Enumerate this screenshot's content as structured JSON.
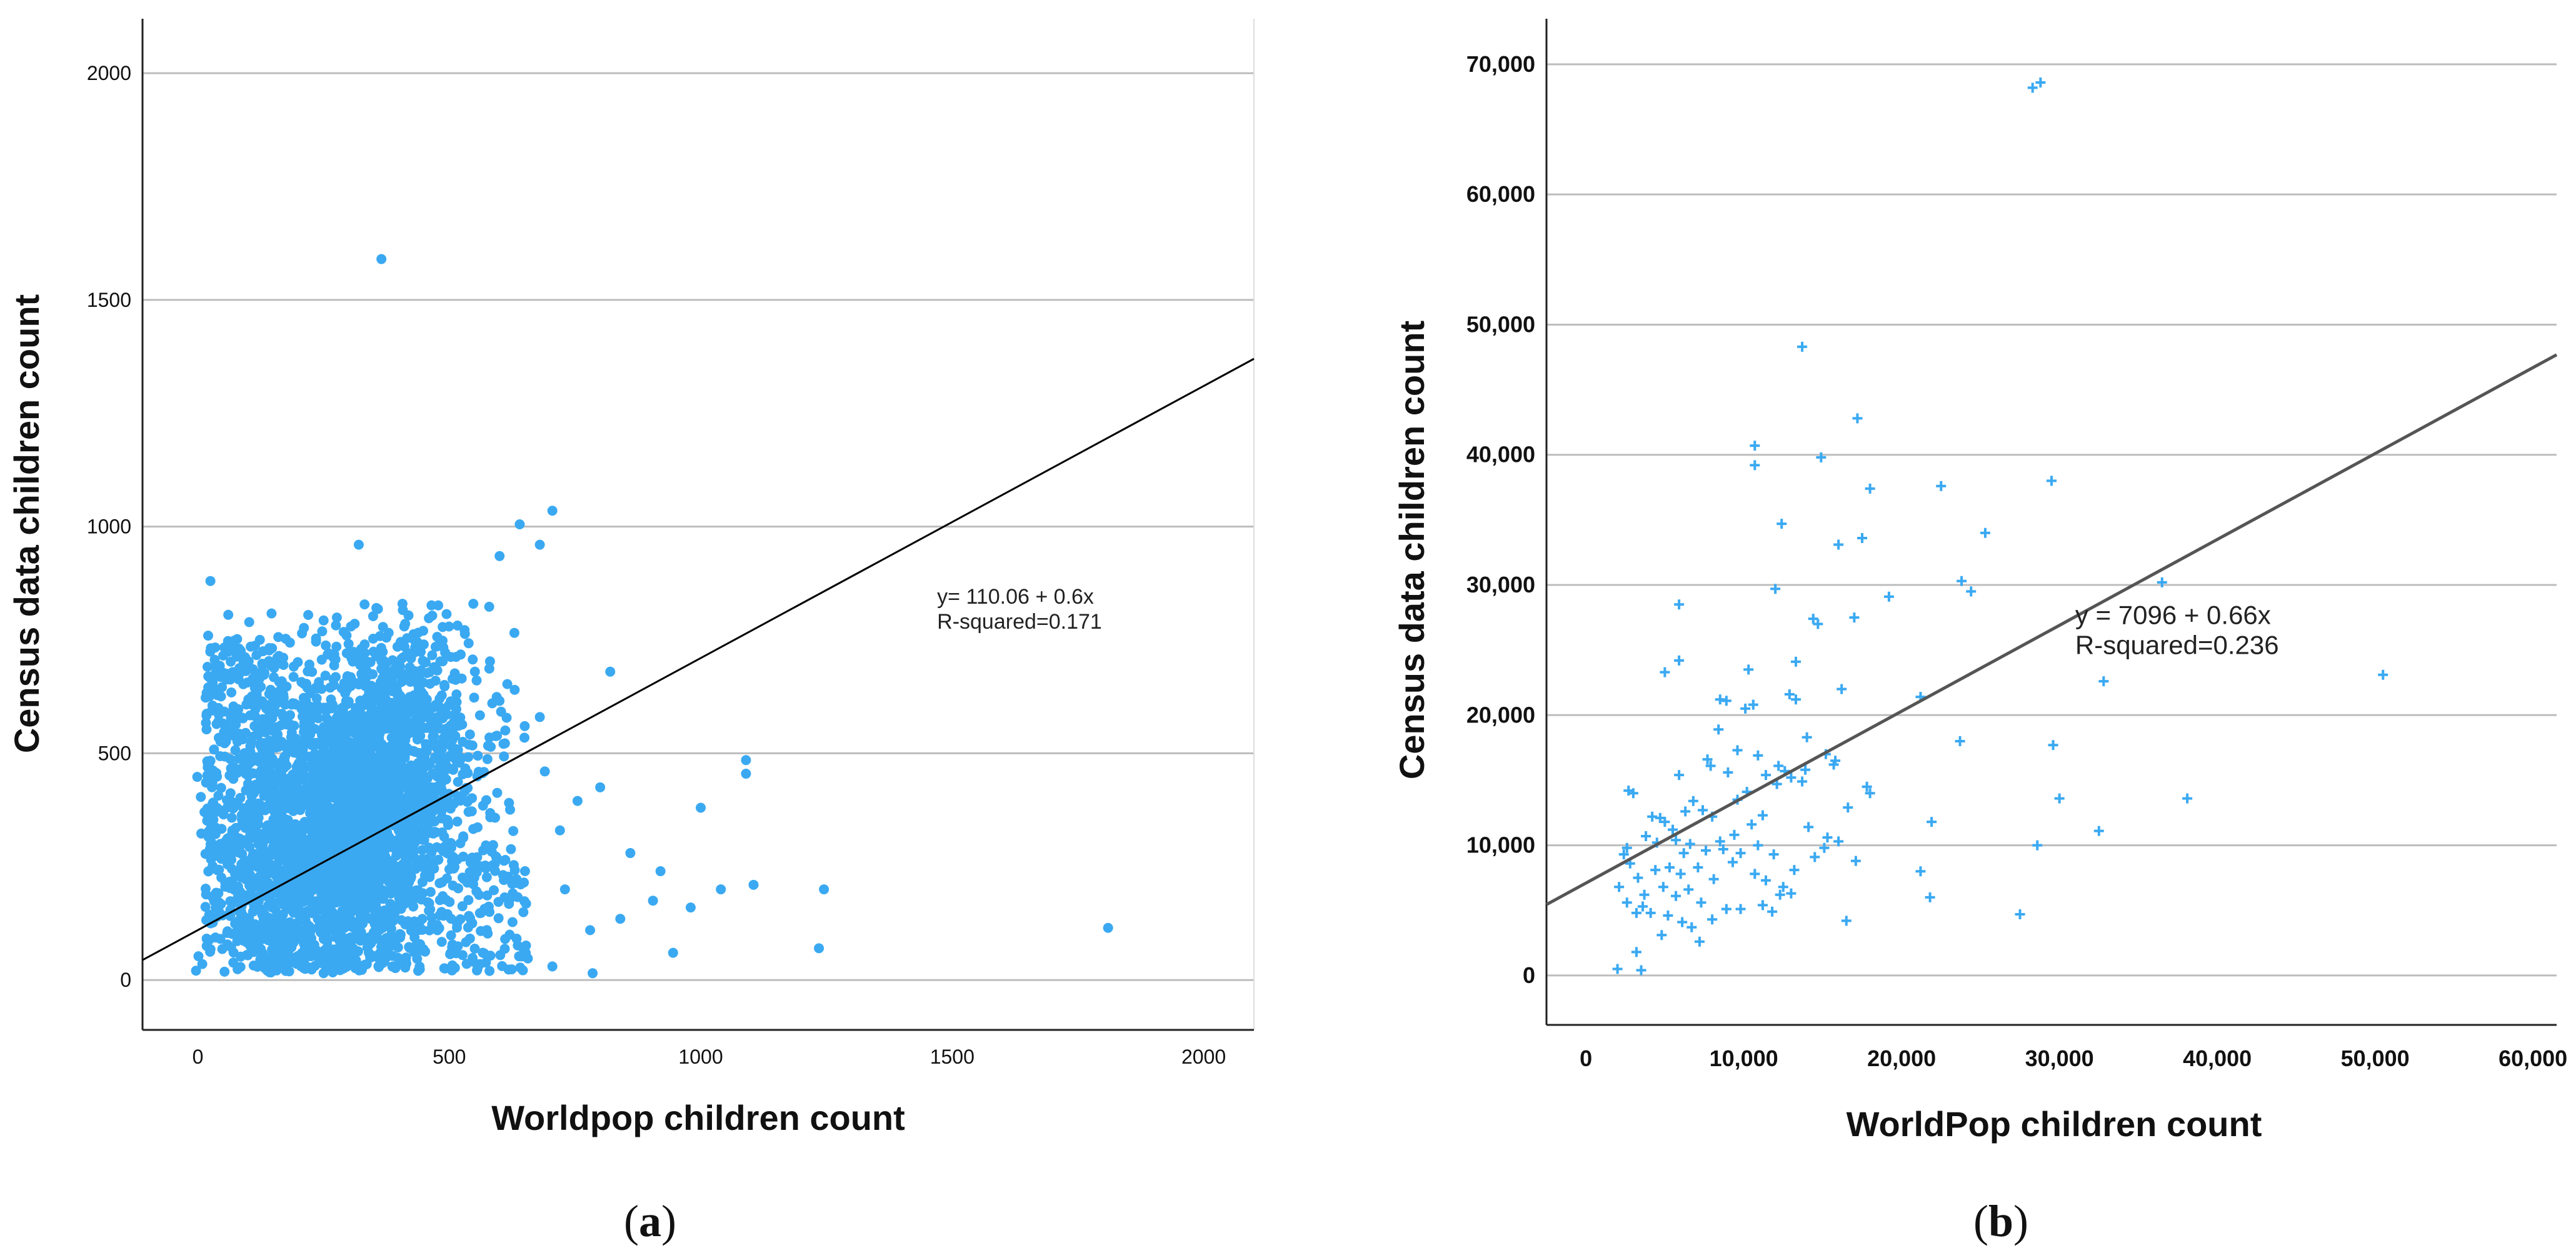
{
  "chart_data": [
    {
      "type": "scatter",
      "panel_label": "(a)",
      "caption": {
        "open": "(",
        "letter": "a",
        "close": ")"
      },
      "xlabel": "Worldpop children count",
      "ylabel": "Census data children count",
      "xlim": [
        -110,
        2100
      ],
      "ylim": [
        -110,
        2120
      ],
      "xticks": [
        0,
        500,
        1000,
        1500,
        2000
      ],
      "xtick_labels": [
        "0",
        "500",
        "1000",
        "1500",
        "2000"
      ],
      "yticks": [
        0,
        500,
        1000,
        1500,
        2000
      ],
      "ytick_labels": [
        "0",
        "500",
        "1000",
        "1500",
        "2000"
      ],
      "grid": "horizontal",
      "point_color": "#3aa9f2",
      "fit": {
        "intercept": 110.06,
        "slope": 0.6,
        "color": "#000000"
      },
      "annotation": {
        "line1": "y= 110.06 + 0.6x",
        "line2": "R-squared=0.171",
        "x": 1470,
        "y": 830
      },
      "cluster": {
        "n": 3600,
        "description": "dense cloud roughly x 0-650, y 20-900"
      },
      "outliers": [
        [
          365,
          1590
        ],
        [
          640,
          1005
        ],
        [
          705,
          1035
        ],
        [
          680,
          960
        ],
        [
          600,
          935
        ],
        [
          320,
          960
        ],
        [
          25,
          880
        ],
        [
          820,
          680
        ],
        [
          1090,
          485
        ],
        [
          1090,
          455
        ],
        [
          1000,
          380
        ],
        [
          1040,
          200
        ],
        [
          1105,
          210
        ],
        [
          1245,
          200
        ],
        [
          1235,
          70
        ],
        [
          1810,
          115
        ],
        [
          945,
          60
        ],
        [
          785,
          15
        ],
        [
          905,
          175
        ],
        [
          860,
          280
        ],
        [
          800,
          425
        ],
        [
          755,
          395
        ],
        [
          730,
          200
        ],
        [
          780,
          110
        ],
        [
          840,
          135
        ],
        [
          705,
          30
        ],
        [
          690,
          460
        ],
        [
          720,
          330
        ],
        [
          620,
          100
        ],
        [
          580,
          20
        ],
        [
          650,
          560
        ],
        [
          630,
          640
        ],
        [
          680,
          580
        ],
        [
          920,
          240
        ],
        [
          980,
          160
        ]
      ]
    },
    {
      "type": "scatter",
      "panel_label": "(b)",
      "caption": {
        "open": "(",
        "letter": "b",
        "close": ")"
      },
      "xlabel": "WorldPop children count",
      "ylabel": "Census data children count",
      "xlim": [
        -2500,
        61500
      ],
      "ylim": [
        -3800,
        73500
      ],
      "xticks": [
        0,
        10000,
        20000,
        30000,
        40000,
        50000,
        60000
      ],
      "xtick_labels": [
        "0",
        "10,000",
        "20,000",
        "30,000",
        "40,000",
        "50,000",
        "60,000"
      ],
      "yticks": [
        0,
        10000,
        20000,
        30000,
        40000,
        50000,
        60000,
        70000
      ],
      "ytick_labels": [
        "0",
        "10,000",
        "20,000",
        "30,000",
        "40,000",
        "50,000",
        "60,000",
        "70,000"
      ],
      "grid": "horizontal",
      "point_color": "#3aa9f2",
      "fit": {
        "intercept": 7096,
        "slope": 0.66,
        "color": "#555555"
      },
      "annotation": {
        "line1": "y = 7096 + 0.66x",
        "line2": "R-squared=0.236",
        "x": 31000,
        "y": 27000
      },
      "points": [
        [
          28300,
          68200
        ],
        [
          28800,
          68600
        ],
        [
          13700,
          48300
        ],
        [
          10700,
          40700
        ],
        [
          10700,
          39200
        ],
        [
          14900,
          39800
        ],
        [
          17200,
          42800
        ],
        [
          18000,
          37400
        ],
        [
          22500,
          37600
        ],
        [
          29500,
          38000
        ],
        [
          12400,
          34700
        ],
        [
          16000,
          33100
        ],
        [
          17500,
          33600
        ],
        [
          25300,
          34000
        ],
        [
          23800,
          30300
        ],
        [
          24400,
          29500
        ],
        [
          12000,
          29700
        ],
        [
          19200,
          29100
        ],
        [
          5900,
          28500
        ],
        [
          14400,
          27400
        ],
        [
          14700,
          27000
        ],
        [
          36500,
          30200
        ],
        [
          17000,
          27500
        ],
        [
          13300,
          24100
        ],
        [
          10300,
          23500
        ],
        [
          12900,
          21600
        ],
        [
          21200,
          21400
        ],
        [
          32800,
          22600
        ],
        [
          50500,
          23100
        ],
        [
          5000,
          23300
        ],
        [
          5900,
          24200
        ],
        [
          16200,
          22000
        ],
        [
          13300,
          21200
        ],
        [
          8500,
          21200
        ],
        [
          8900,
          21100
        ],
        [
          10100,
          20500
        ],
        [
          10600,
          20800
        ],
        [
          8400,
          18900
        ],
        [
          15200,
          17000
        ],
        [
          15700,
          16200
        ],
        [
          13900,
          15800
        ],
        [
          12600,
          15700
        ],
        [
          13000,
          15200
        ],
        [
          9600,
          17300
        ],
        [
          10900,
          16900
        ],
        [
          11400,
          15400
        ],
        [
          7700,
          16600
        ],
        [
          7900,
          16100
        ],
        [
          5900,
          15400
        ],
        [
          12100,
          14700
        ],
        [
          13700,
          14900
        ],
        [
          17800,
          14500
        ],
        [
          18000,
          14000
        ],
        [
          23700,
          18000
        ],
        [
          29600,
          17700
        ],
        [
          21900,
          11800
        ],
        [
          30000,
          13600
        ],
        [
          38100,
          13600
        ],
        [
          32500,
          11100
        ],
        [
          28600,
          10000
        ],
        [
          2700,
          14200
        ],
        [
          3000,
          14000
        ],
        [
          4200,
          12200
        ],
        [
          5000,
          11800
        ],
        [
          6300,
          12600
        ],
        [
          5500,
          11200
        ],
        [
          6800,
          13400
        ],
        [
          7400,
          12700
        ],
        [
          3800,
          10700
        ],
        [
          4500,
          10200
        ],
        [
          6600,
          10100
        ],
        [
          8500,
          10300
        ],
        [
          9400,
          10800
        ],
        [
          10500,
          11600
        ],
        [
          11200,
          12300
        ],
        [
          8700,
          9700
        ],
        [
          9300,
          8700
        ],
        [
          9800,
          9400
        ],
        [
          10900,
          10000
        ],
        [
          11900,
          9300
        ],
        [
          2400,
          9300
        ],
        [
          2800,
          8600
        ],
        [
          3300,
          7500
        ],
        [
          4400,
          8100
        ],
        [
          5300,
          8300
        ],
        [
          6000,
          7800
        ],
        [
          7100,
          8300
        ],
        [
          8100,
          7400
        ],
        [
          2100,
          6800
        ],
        [
          2600,
          5600
        ],
        [
          3700,
          6200
        ],
        [
          4900,
          6800
        ],
        [
          5700,
          6100
        ],
        [
          6500,
          6600
        ],
        [
          7300,
          5600
        ],
        [
          3200,
          4800
        ],
        [
          4100,
          4800
        ],
        [
          5200,
          4600
        ],
        [
          6100,
          4100
        ],
        [
          6700,
          3700
        ],
        [
          8000,
          4300
        ],
        [
          8900,
          5100
        ],
        [
          9800,
          5100
        ],
        [
          11200,
          5400
        ],
        [
          12300,
          6200
        ],
        [
          12500,
          6800
        ],
        [
          11400,
          7300
        ],
        [
          10700,
          7800
        ],
        [
          13200,
          8100
        ],
        [
          14500,
          9100
        ],
        [
          15100,
          9800
        ],
        [
          16000,
          10300
        ],
        [
          17100,
          8800
        ],
        [
          21200,
          8000
        ],
        [
          21800,
          6000
        ],
        [
          27500,
          4700
        ],
        [
          16500,
          4200
        ],
        [
          7200,
          2600
        ],
        [
          3200,
          1800
        ],
        [
          2000,
          500
        ],
        [
          3500,
          400
        ],
        [
          15300,
          10600
        ],
        [
          14100,
          11400
        ],
        [
          9600,
          13500
        ],
        [
          10200,
          14100
        ],
        [
          16600,
          12900
        ],
        [
          9000,
          15600
        ],
        [
          8000,
          12200
        ],
        [
          6200,
          9400
        ],
        [
          7600,
          9600
        ],
        [
          5700,
          10400
        ],
        [
          4700,
          12100
        ],
        [
          13000,
          6300
        ],
        [
          11800,
          4900
        ],
        [
          3600,
          5300
        ],
        [
          4800,
          3100
        ],
        [
          2600,
          9800
        ],
        [
          12200,
          16100
        ],
        [
          15800,
          16500
        ],
        [
          14000,
          18300
        ]
      ]
    }
  ]
}
